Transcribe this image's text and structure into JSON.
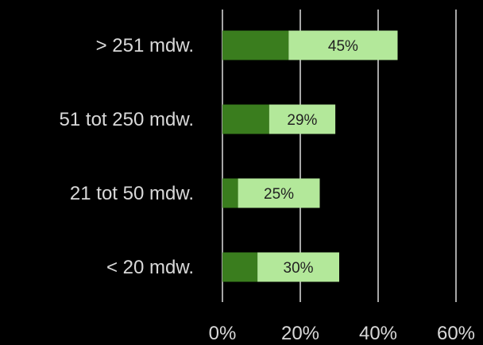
{
  "chart_data": {
    "type": "bar",
    "orientation": "horizontal",
    "stacked": true,
    "categories": [
      "> 251 mdw.",
      "51 tot 250 mdw.",
      "21 tot 50 mdw.",
      "< 20 mdw."
    ],
    "series": [
      {
        "values": [
          17,
          12,
          4,
          9
        ],
        "color": "#3a7d1e"
      },
      {
        "values": [
          28,
          17,
          21,
          21
        ],
        "color": "#b3e89a"
      }
    ],
    "totals": [
      45,
      29,
      25,
      30
    ],
    "data_labels": [
      "45%",
      "29%",
      "25%",
      "30%"
    ],
    "x_ticks": [
      "0%",
      "20%",
      "40%",
      "60%"
    ],
    "xlim": [
      0,
      60
    ],
    "grid": true,
    "legend": "none",
    "colors": {
      "background": "#000000",
      "gridline": "#ffffff",
      "text": "#d9d9d9",
      "data_label_text": "#222222"
    }
  }
}
